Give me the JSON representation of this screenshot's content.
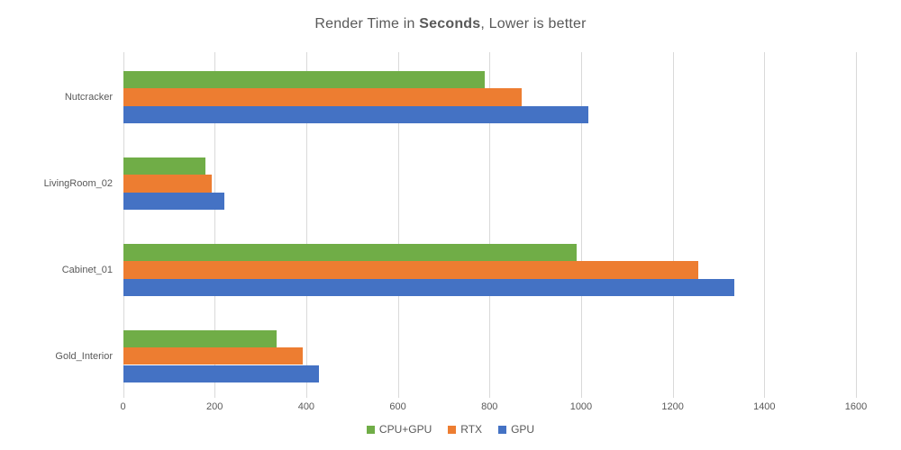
{
  "title": {
    "prefix": "Render Time in ",
    "bold": "Seconds",
    "suffix": ", Lower is better"
  },
  "chart_data": {
    "type": "bar",
    "orientation": "horizontal",
    "title": "Render Time in Seconds, Lower is better",
    "categories": [
      "Nutcracker",
      "LivingRoom_02",
      "Cabinet_01",
      "Gold_Interior"
    ],
    "series": [
      {
        "name": "CPU+GPU",
        "color": "#70AD47",
        "values": [
          790,
          180,
          990,
          335
        ]
      },
      {
        "name": "RTX",
        "color": "#ED7D31",
        "values": [
          870,
          193,
          1255,
          393
        ]
      },
      {
        "name": "GPU",
        "color": "#4472C4",
        "values": [
          1015,
          222,
          1335,
          428
        ]
      }
    ],
    "x_ticks": [
      0,
      200,
      400,
      600,
      800,
      1000,
      1200,
      1400,
      1600
    ],
    "xlim": [
      0,
      1600
    ],
    "grid": "vertical",
    "legend_position": "bottom"
  },
  "colors": {
    "gridline": "#D9D9D9",
    "text": "#595959",
    "background": "#FFFFFF"
  }
}
